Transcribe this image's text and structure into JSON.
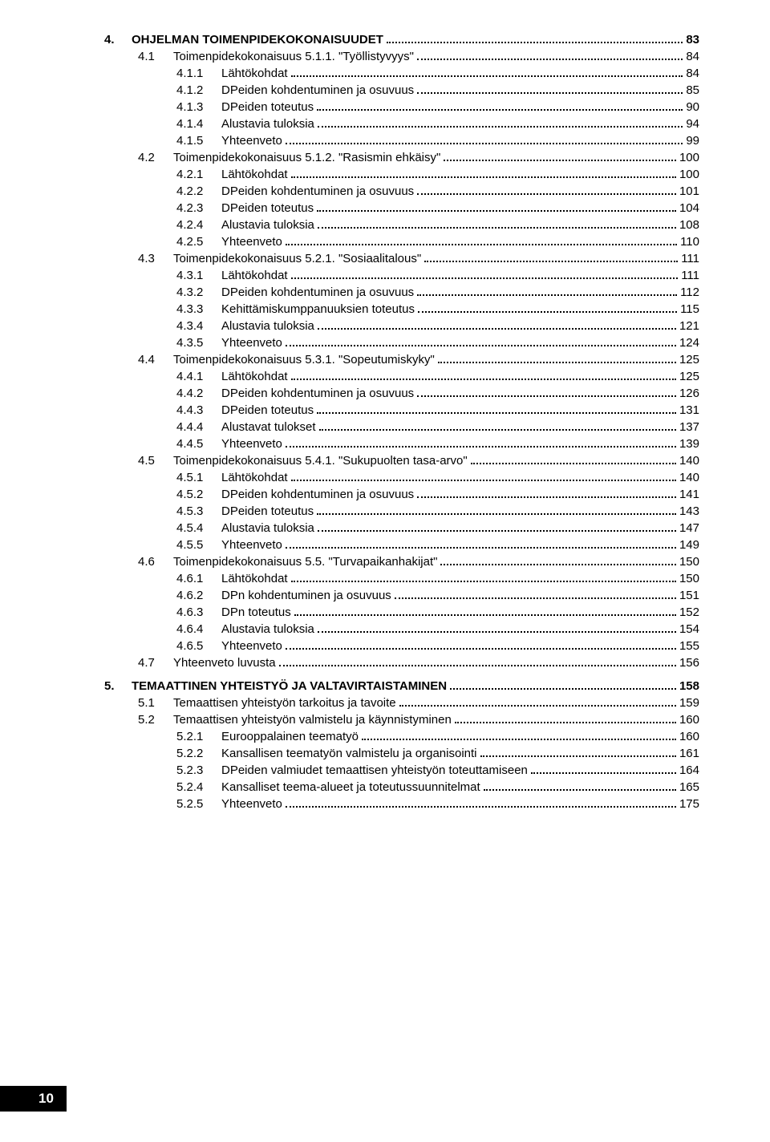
{
  "page_number": "10",
  "entries": [
    {
      "level": 0,
      "bold": true,
      "num": "4.",
      "title": "OHJELMAN TOIMENPIDEKOKONAISUUDET",
      "page": "83"
    },
    {
      "level": 1,
      "bold": false,
      "num": "4.1",
      "title": "Toimenpidekokonaisuus 5.1.1. \"Työllistyvyys\"",
      "page": "84"
    },
    {
      "level": 2,
      "bold": false,
      "num": "4.1.1",
      "title": "Lähtökohdat",
      "page": "84"
    },
    {
      "level": 2,
      "bold": false,
      "num": "4.1.2",
      "title": "DPeiden kohdentuminen ja osuvuus",
      "page": "85"
    },
    {
      "level": 2,
      "bold": false,
      "num": "4.1.3",
      "title": "DPeiden toteutus",
      "page": "90"
    },
    {
      "level": 2,
      "bold": false,
      "num": "4.1.4",
      "title": "Alustavia tuloksia",
      "page": "94"
    },
    {
      "level": 2,
      "bold": false,
      "num": "4.1.5",
      "title": "Yhteenveto",
      "page": "99"
    },
    {
      "level": 1,
      "bold": false,
      "num": "4.2",
      "title": "Toimenpidekokonaisuus 5.1.2. \"Rasismin ehkäisy\"",
      "page": "100"
    },
    {
      "level": 2,
      "bold": false,
      "num": "4.2.1",
      "title": "Lähtökohdat",
      "page": "100"
    },
    {
      "level": 2,
      "bold": false,
      "num": "4.2.2",
      "title": "DPeiden kohdentuminen ja osuvuus",
      "page": "101"
    },
    {
      "level": 2,
      "bold": false,
      "num": "4.2.3",
      "title": "DPeiden toteutus",
      "page": "104"
    },
    {
      "level": 2,
      "bold": false,
      "num": "4.2.4",
      "title": "Alustavia tuloksia",
      "page": "108"
    },
    {
      "level": 2,
      "bold": false,
      "num": "4.2.5",
      "title": "Yhteenveto",
      "page": "110"
    },
    {
      "level": 1,
      "bold": false,
      "num": "4.3",
      "title": "Toimenpidekokonaisuus 5.2.1. \"Sosiaalitalous\"",
      "page": "111"
    },
    {
      "level": 2,
      "bold": false,
      "num": "4.3.1",
      "title": "Lähtökohdat",
      "page": "111"
    },
    {
      "level": 2,
      "bold": false,
      "num": "4.3.2",
      "title": "DPeiden kohdentuminen ja osuvuus",
      "page": "112"
    },
    {
      "level": 2,
      "bold": false,
      "num": "4.3.3",
      "title": "Kehittämiskumppanuuksien toteutus",
      "page": "115"
    },
    {
      "level": 2,
      "bold": false,
      "num": "4.3.4",
      "title": "Alustavia tuloksia",
      "page": "121"
    },
    {
      "level": 2,
      "bold": false,
      "num": "4.3.5",
      "title": "Yhteenveto",
      "page": "124"
    },
    {
      "level": 1,
      "bold": false,
      "num": "4.4",
      "title": "Toimenpidekokonaisuus 5.3.1. \"Sopeutumiskyky\"",
      "page": "125"
    },
    {
      "level": 2,
      "bold": false,
      "num": "4.4.1",
      "title": "Lähtökohdat",
      "page": "125"
    },
    {
      "level": 2,
      "bold": false,
      "num": "4.4.2",
      "title": "DPeiden kohdentuminen ja osuvuus",
      "page": "126"
    },
    {
      "level": 2,
      "bold": false,
      "num": "4.4.3",
      "title": "DPeiden toteutus",
      "page": "131"
    },
    {
      "level": 2,
      "bold": false,
      "num": "4.4.4",
      "title": "Alustavat tulokset",
      "page": "137"
    },
    {
      "level": 2,
      "bold": false,
      "num": "4.4.5",
      "title": "Yhteenveto",
      "page": "139"
    },
    {
      "level": 1,
      "bold": false,
      "num": "4.5",
      "title": "Toimenpidekokonaisuus 5.4.1. \"Sukupuolten tasa-arvo\"",
      "page": "140"
    },
    {
      "level": 2,
      "bold": false,
      "num": "4.5.1",
      "title": "Lähtökohdat",
      "page": "140"
    },
    {
      "level": 2,
      "bold": false,
      "num": "4.5.2",
      "title": "DPeiden kohdentuminen ja osuvuus",
      "page": "141"
    },
    {
      "level": 2,
      "bold": false,
      "num": "4.5.3",
      "title": "DPeiden toteutus",
      "page": "143"
    },
    {
      "level": 2,
      "bold": false,
      "num": "4.5.4",
      "title": "Alustavia tuloksia",
      "page": "147"
    },
    {
      "level": 2,
      "bold": false,
      "num": "4.5.5",
      "title": "Yhteenveto",
      "page": "149"
    },
    {
      "level": 1,
      "bold": false,
      "num": "4.6",
      "title": "Toimenpidekokonaisuus 5.5. \"Turvapaikanhakijat\"",
      "page": "150"
    },
    {
      "level": 2,
      "bold": false,
      "num": "4.6.1",
      "title": "Lähtökohdat",
      "page": "150"
    },
    {
      "level": 2,
      "bold": false,
      "num": "4.6.2",
      "title": "DPn kohdentuminen ja osuvuus",
      "page": "151"
    },
    {
      "level": 2,
      "bold": false,
      "num": "4.6.3",
      "title": "DPn toteutus",
      "page": "152"
    },
    {
      "level": 2,
      "bold": false,
      "num": "4.6.4",
      "title": "Alustavia tuloksia",
      "page": "154"
    },
    {
      "level": 2,
      "bold": false,
      "num": "4.6.5",
      "title": "Yhteenveto",
      "page": "155"
    },
    {
      "level": 1,
      "bold": false,
      "num": "4.7",
      "title": "Yhteenveto luvusta",
      "page": "156"
    },
    {
      "level": 0,
      "bold": true,
      "num": "5.",
      "title": "TEMAATTINEN YHTEISTYÖ JA VALTAVIRTAISTAMINEN",
      "page": "158",
      "gap": true
    },
    {
      "level": 1,
      "bold": false,
      "num": "5.1",
      "title": "Temaattisen yhteistyön tarkoitus ja tavoite",
      "page": "159"
    },
    {
      "level": 1,
      "bold": false,
      "num": "5.2",
      "title": "Temaattisen yhteistyön valmistelu ja käynnistyminen",
      "page": "160"
    },
    {
      "level": 2,
      "bold": false,
      "num": "5.2.1",
      "title": "Eurooppalainen teematyö",
      "page": "160"
    },
    {
      "level": 2,
      "bold": false,
      "num": "5.2.2",
      "title": "Kansallisen teematyön valmistelu ja organisointi",
      "page": "161"
    },
    {
      "level": 2,
      "bold": false,
      "num": "5.2.3",
      "title": "DPeiden valmiudet temaattisen yhteistyön toteuttamiseen",
      "page": "164"
    },
    {
      "level": 2,
      "bold": false,
      "num": "5.2.4",
      "title": "Kansalliset teema-alueet ja toteutussuunnitelmat",
      "page": "165"
    },
    {
      "level": 2,
      "bold": false,
      "num": "5.2.5",
      "title": "Yhteenveto",
      "page": "175"
    }
  ]
}
